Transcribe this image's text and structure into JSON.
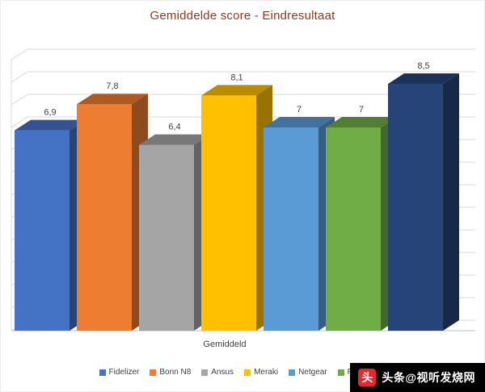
{
  "chart_data": {
    "type": "bar",
    "variant": "3d-clustered-column",
    "title": "Gemiddelde score - Eindresultaat",
    "xlabel": "Gemiddeld",
    "categories": [
      "Gemiddeld"
    ],
    "series": [
      {
        "name": "Fidelizer",
        "value": 6.9,
        "label": "6,9",
        "color": "#4472C4"
      },
      {
        "name": "Bonn N8",
        "value": 7.8,
        "label": "7,8",
        "color": "#ED7D31"
      },
      {
        "name": "Ansus",
        "value": 6.4,
        "label": "6,4",
        "color": "#A5A5A5"
      },
      {
        "name": "Meraki",
        "value": 8.1,
        "label": "8,1",
        "color": "#FFC000"
      },
      {
        "name": "Netgear",
        "value": 7,
        "label": "7",
        "color": "#5B9BD5"
      },
      {
        "name": "Fiber",
        "value": 7,
        "label": "7",
        "color": "#70AD47"
      },
      {
        "name": "",
        "value": 8.5,
        "label": "8,5",
        "color": "#264478"
      }
    ],
    "ylim": [
      0,
      9
    ],
    "grid": true,
    "legend_position": "bottom"
  },
  "colors": {
    "title": "#8E3B1F",
    "grid": "#D9D9D9",
    "axis": "#BFBFBF",
    "data_label": "#404040"
  },
  "watermark": {
    "text": "头条@视听发烧网",
    "icon_glyph": "头",
    "icon_color": "#E8262D",
    "bg": "#000000",
    "text_color": "#FFFFFF"
  }
}
